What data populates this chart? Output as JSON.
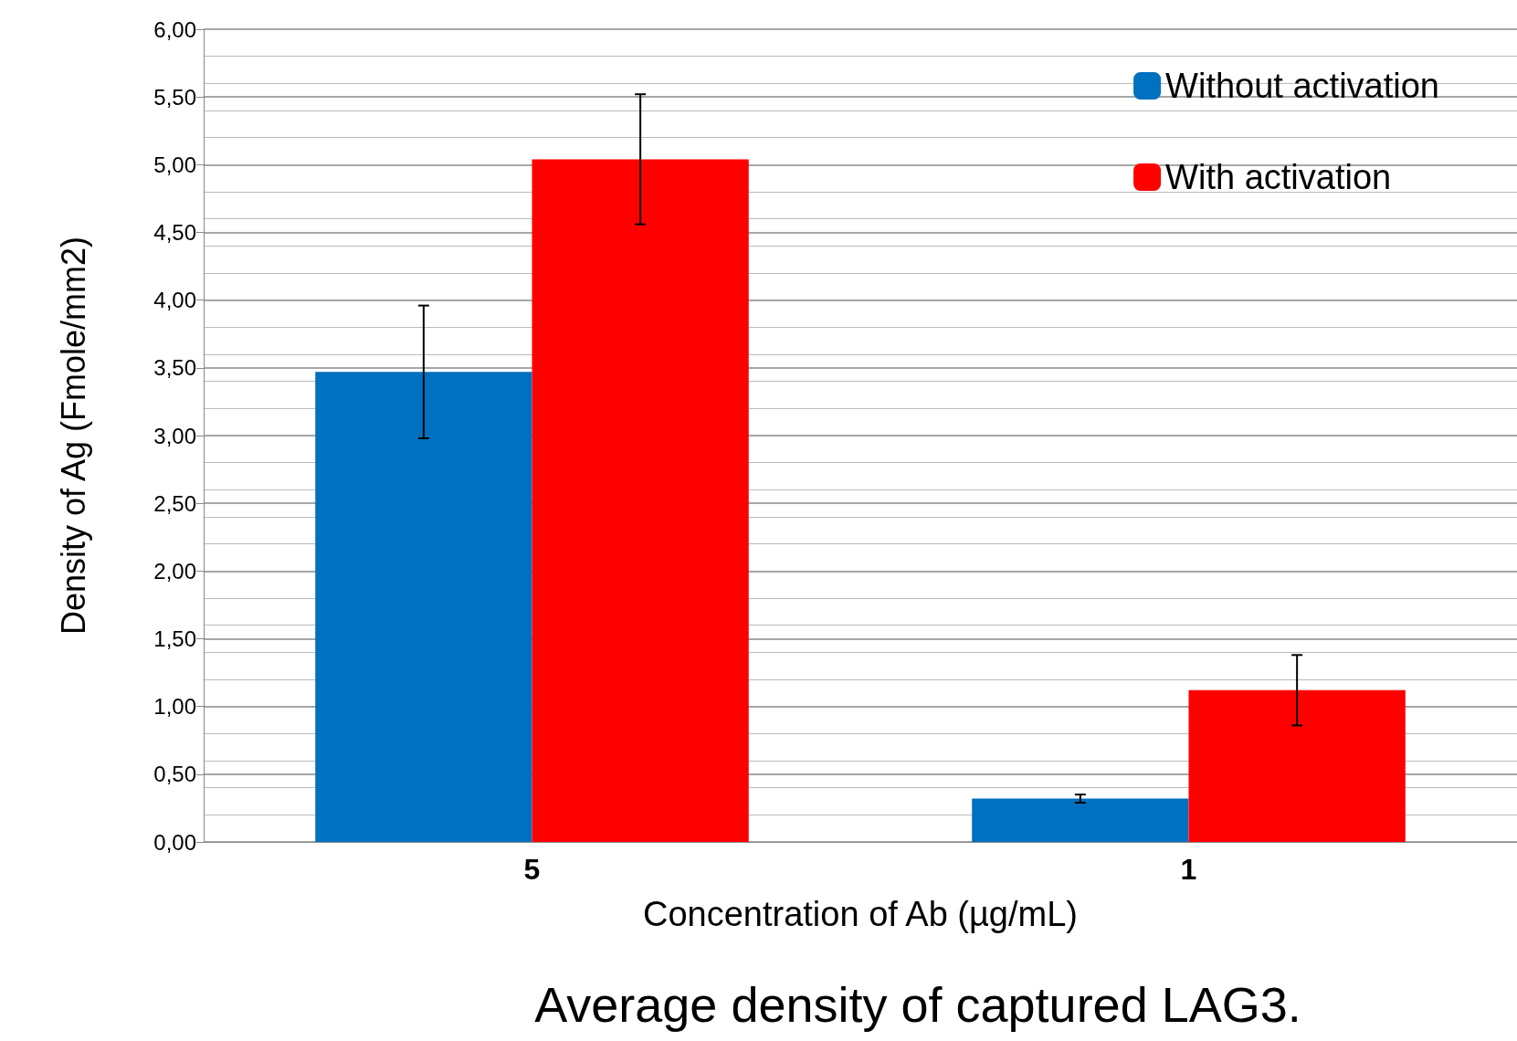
{
  "chart_data": {
    "type": "bar",
    "title": "Average density of captured LAG3.",
    "xlabel": "Concentration of Ab (µg/mL)",
    "ylabel": "Density of Ag (Fmole/mm2)",
    "categories": [
      "5",
      "1"
    ],
    "series": [
      {
        "name": "Without activation",
        "color": "#0070c0",
        "values": [
          3.47,
          0.32
        ],
        "errors": [
          0.49,
          0.03
        ]
      },
      {
        "name": "With activation",
        "color": "#ff0000",
        "values": [
          5.04,
          1.12
        ],
        "errors": [
          0.48,
          0.26
        ]
      }
    ],
    "ylim": [
      0,
      6
    ],
    "yticks": [
      {
        "value": 0,
        "label": "0,00"
      },
      {
        "value": 0.5,
        "label": "0,50"
      },
      {
        "value": 1,
        "label": "1,00"
      },
      {
        "value": 1.5,
        "label": "1,50"
      },
      {
        "value": 2,
        "label": "2,00"
      },
      {
        "value": 2.5,
        "label": "2,50"
      },
      {
        "value": 3,
        "label": "3,00"
      },
      {
        "value": 3.5,
        "label": "3,50"
      },
      {
        "value": 4,
        "label": "4,00"
      },
      {
        "value": 4.5,
        "label": "4,50"
      },
      {
        "value": 5,
        "label": "5,00"
      },
      {
        "value": 5.5,
        "label": "5,50"
      },
      {
        "value": 6,
        "label": "6,00"
      }
    ],
    "grid": "y",
    "legend": "top right"
  }
}
